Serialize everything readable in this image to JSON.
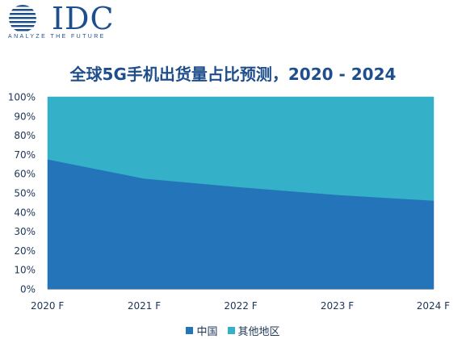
{
  "logo": {
    "text": "IDC",
    "tagline": "ANALYZE THE FUTURE",
    "color": "#1e4e8c"
  },
  "chart_data": {
    "type": "area",
    "stacked": true,
    "title": "全球5G手机出货量占比预测，2020 - 2024",
    "categories": [
      "2020 F",
      "2021 F",
      "2022 F",
      "2023 F",
      "2024 F"
    ],
    "series": [
      {
        "name": "中国",
        "values": [
          67.5,
          57.5,
          53,
          49,
          46
        ],
        "color": "#2474b9"
      },
      {
        "name": "其他地区",
        "values": [
          32.5,
          42.5,
          47,
          51,
          54
        ],
        "color": "#35b0c9"
      }
    ],
    "yticks": [
      "0%",
      "10%",
      "20%",
      "30%",
      "40%",
      "50%",
      "60%",
      "70%",
      "80%",
      "90%",
      "100%"
    ],
    "ylim": [
      0,
      100
    ],
    "grid": false,
    "legend": "bottom"
  }
}
